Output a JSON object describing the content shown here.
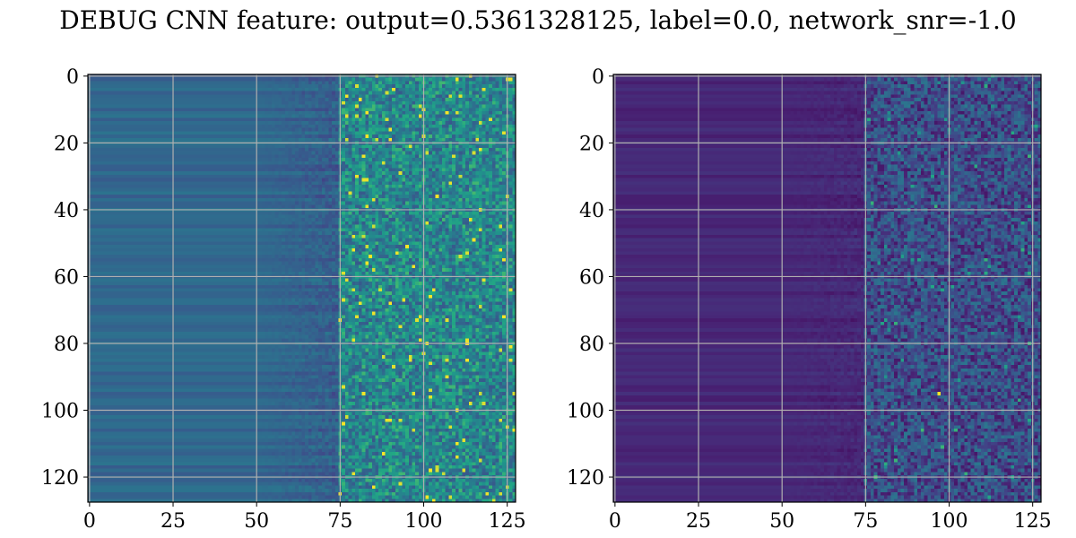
{
  "title": "DEBUG CNN feature: output=0.5361328125, label=0.0, network_snr=-1.0",
  "chart_data": [
    {
      "type": "heatmap",
      "title": "",
      "xlabel": "",
      "ylabel": "",
      "rows": 128,
      "cols": 128,
      "xlim": [
        0,
        127
      ],
      "ylim": [
        127,
        0
      ],
      "xticks": [
        0,
        25,
        50,
        75,
        100,
        125
      ],
      "yticks": [
        0,
        20,
        40,
        60,
        80,
        100,
        120
      ],
      "grid": true,
      "colormap": "viridis",
      "colorscale_note": "left-half columns near uniform teal; columns >75 noisy with green/yellow speckles",
      "value_profile": {
        "low_cols": [
          0,
          50
        ],
        "ramp_cols": [
          50,
          75
        ],
        "noisy_cols": [
          75,
          127
        ]
      }
    },
    {
      "type": "heatmap",
      "title": "",
      "xlabel": "",
      "ylabel": "",
      "rows": 128,
      "cols": 128,
      "xlim": [
        0,
        127
      ],
      "ylim": [
        127,
        0
      ],
      "xticks": [
        0,
        25,
        50,
        75,
        100,
        125
      ],
      "yticks": [
        0,
        20,
        40,
        60,
        80,
        100,
        120
      ],
      "grid": true,
      "colormap": "viridis",
      "colorscale_note": "mostly dark purple; columns >75 noisy with blue/teal speckles, one bright yellow pixel near (97, 95)",
      "value_profile": {
        "low_cols": [
          0,
          50
        ],
        "ramp_cols": [
          50,
          75
        ],
        "noisy_cols": [
          75,
          127
        ]
      }
    }
  ]
}
